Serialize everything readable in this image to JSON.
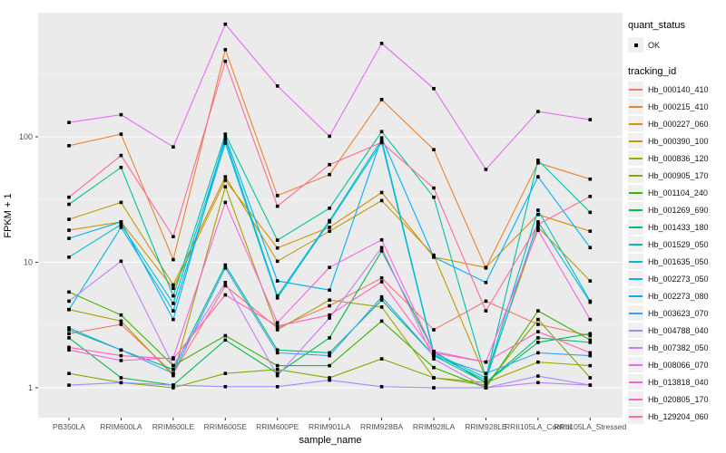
{
  "colors": {
    "panel_bg": "#EBEBEB",
    "grid_major": "#FFFFFF",
    "grid_minor": "#F7F7F7",
    "axis_text": "#4D4D4D",
    "tick_mark": "#333333",
    "point": "#000000",
    "legend_key_bg": "#F0F0F0"
  },
  "legend": {
    "quant_status": {
      "title": "quant_status",
      "items": [
        {
          "label": "OK"
        }
      ]
    },
    "tracking_id_title": "tracking_id"
  },
  "chart_data": {
    "type": "line",
    "title": "",
    "xlabel": "sample_name",
    "ylabel": "FPKM + 1",
    "y_scale": "log10",
    "grid": true,
    "legend_position": "right",
    "y_ticks": [
      1,
      10,
      100
    ],
    "y_minor_ticks": [
      3.162,
      31.62,
      316.2
    ],
    "ylim": [
      0.72,
      960
    ],
    "point_shape": "square",
    "categories": [
      "PB350LA",
      "RRIM600LA",
      "RRIM600LE",
      "RRIM600SE",
      "RRIM600PE",
      "RRIM901LA",
      "RRIM928BA",
      "RRIM928LA",
      "RRIM928LE",
      "RRII105LA_Control",
      "RRII105LA_Stressed"
    ],
    "series": [
      {
        "name": "Hb_000140_410",
        "color": "#F8766D",
        "values": [
          2.7,
          3.2,
          1.3,
          6.5,
          3.0,
          4.5,
          7.5,
          2.9,
          4.9,
          3.2,
          2.6
        ]
      },
      {
        "name": "Hb_000215_410",
        "color": "#EA8331",
        "values": [
          85,
          105,
          10.5,
          495,
          34,
          50,
          198,
          79,
          9.0,
          62,
          46
        ]
      },
      {
        "name": "Hb_000227_060",
        "color": "#D89000",
        "values": [
          18,
          21,
          6.2,
          45,
          13,
          19,
          36,
          11,
          9.1,
          24,
          17.7
        ]
      },
      {
        "name": "Hb_000390_100",
        "color": "#C09B00",
        "values": [
          22,
          30,
          6.6,
          48,
          10.2,
          17.7,
          31,
          11.4,
          1.2,
          19,
          7.1
        ]
      },
      {
        "name": "Hb_000836_120",
        "color": "#A3A500",
        "values": [
          4.2,
          3.4,
          1.25,
          40,
          2.9,
          5.0,
          4.4,
          1.2,
          1.1,
          1.6,
          1.5
        ]
      },
      {
        "name": "Hb_000905_170",
        "color": "#7CAE00",
        "values": [
          1.3,
          1.1,
          1.0,
          1.3,
          1.4,
          1.2,
          1.7,
          1.2,
          1.05,
          3.5,
          1.2
        ]
      },
      {
        "name": "Hb_001104_240",
        "color": "#39B600",
        "values": [
          5.8,
          3.8,
          1.5,
          2.6,
          1.5,
          1.5,
          3.4,
          1.45,
          1.0,
          4.1,
          2.4
        ]
      },
      {
        "name": "Hb_001269_690",
        "color": "#00BB4E",
        "values": [
          2.5,
          1.2,
          1.05,
          2.4,
          1.3,
          2.5,
          12.3,
          1.95,
          1.1,
          2.3,
          2.7
        ]
      },
      {
        "name": "Hb_001433_180",
        "color": "#00BF7D",
        "values": [
          2.9,
          2.0,
          1.4,
          9.5,
          2.0,
          1.9,
          5.0,
          1.8,
          1.1,
          2.5,
          2.3
        ]
      },
      {
        "name": "Hb_001529_050",
        "color": "#00C1A3",
        "values": [
          29,
          57,
          5.4,
          105,
          15,
          27,
          110,
          33,
          1.2,
          65,
          25
        ]
      },
      {
        "name": "Hb_001635_050",
        "color": "#00BFC4",
        "values": [
          11,
          20,
          4.7,
          95,
          5.4,
          21.5,
          95,
          1.9,
          1.2,
          26,
          4.9
        ]
      },
      {
        "name": "Hb_002273_050",
        "color": "#00BAE0",
        "values": [
          4.2,
          19,
          4.1,
          89,
          5.2,
          21,
          90,
          1.85,
          1.15,
          21,
          4.8
        ]
      },
      {
        "name": "Hb_002273_080",
        "color": "#00B0F6",
        "values": [
          15.5,
          21,
          3.5,
          100,
          7.1,
          6.0,
          98,
          11,
          6.9,
          48,
          13.1
        ]
      },
      {
        "name": "Hb_003623_070",
        "color": "#35A2FF",
        "values": [
          3.0,
          2.0,
          1.3,
          9.0,
          1.9,
          1.8,
          5.3,
          1.8,
          1.3,
          1.9,
          1.8
        ]
      },
      {
        "name": "Hb_004788_040",
        "color": "#9590FF",
        "values": [
          1.05,
          1.1,
          1.05,
          1.02,
          1.02,
          1.15,
          1.02,
          1.0,
          1.0,
          1.24,
          1.05
        ]
      },
      {
        "name": "Hb_007382_050",
        "color": "#C77CFF",
        "values": [
          4.9,
          10.2,
          1.5,
          6.9,
          1.25,
          3.6,
          13.1,
          1.7,
          1.0,
          1.1,
          1.05
        ]
      },
      {
        "name": "Hb_008066_070",
        "color": "#E76BF3",
        "values": [
          130,
          150,
          83,
          790,
          254,
          101,
          555,
          242,
          55,
          159,
          137
        ]
      },
      {
        "name": "Hb_013818_040",
        "color": "#FA62DB",
        "values": [
          2.0,
          1.65,
          1.73,
          30,
          3.3,
          9.1,
          15.1,
          1.95,
          1.6,
          18,
          3.5
        ]
      },
      {
        "name": "Hb_020805_170",
        "color": "#FF62BC",
        "values": [
          2.1,
          1.8,
          1.7,
          5.5,
          3.1,
          3.8,
          7.0,
          1.9,
          1.6,
          2.8,
          1.9
        ]
      },
      {
        "name": "Hb_129204_060",
        "color": "#FF6A98",
        "values": [
          33,
          71,
          16,
          400,
          28,
          60,
          90,
          39,
          4.1,
          20,
          33.5
        ]
      }
    ]
  }
}
